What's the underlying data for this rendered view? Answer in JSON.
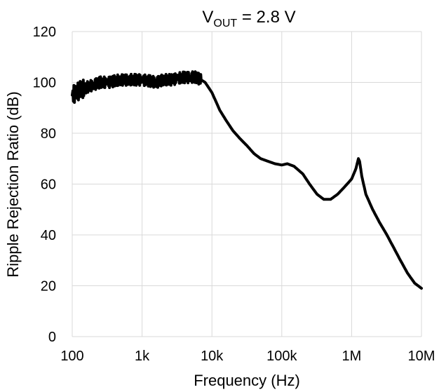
{
  "chart_data": {
    "type": "line",
    "title_main": "V",
    "title_sub": "OUT",
    "title_rest": " = 2.8 V",
    "xlabel": "Frequency (Hz)",
    "ylabel": "Ripple Rejection Ratio (dB)",
    "x_scale": "log",
    "xlim": [
      100,
      10000000
    ],
    "ylim": [
      0,
      120
    ],
    "x_ticks": [
      100,
      1000,
      10000,
      100000,
      1000000,
      10000000
    ],
    "x_tick_labels": [
      "100",
      "1k",
      "10k",
      "100k",
      "1M",
      "10M"
    ],
    "y_ticks": [
      0,
      20,
      40,
      60,
      80,
      100,
      120
    ],
    "y_tick_labels": [
      "0",
      "20",
      "40",
      "60",
      "80",
      "100",
      "120"
    ],
    "grid": true,
    "line_color": "#000000",
    "series": [
      {
        "x": [
          100,
          130,
          160,
          200,
          250,
          320,
          400,
          500,
          630,
          800,
          1000,
          1300,
          1600,
          2000,
          2500,
          3200,
          4000,
          5000,
          6000,
          7000,
          8000,
          10000,
          13000,
          16000,
          20000,
          25000,
          32000,
          40000,
          50000,
          63000,
          80000,
          100000,
          120000,
          150000,
          200000,
          250000,
          320000,
          400000,
          500000,
          630000,
          800000,
          1000000,
          1150000,
          1250000,
          1300000,
          1400000,
          1600000,
          2000000,
          2500000,
          3200000,
          4000000,
          5000000,
          6300000,
          8000000,
          10000000
        ],
        "y": [
          95,
          97,
          98,
          99,
          100,
          100,
          100.5,
          101,
          101,
          101,
          101,
          100.5,
          100,
          101,
          101,
          101.5,
          102,
          102,
          102,
          101,
          100,
          96,
          89,
          85,
          81,
          78,
          75,
          72,
          70,
          69,
          68,
          67.5,
          68,
          67,
          64,
          60,
          56,
          54,
          54,
          56,
          59,
          62,
          66,
          70,
          69,
          63,
          56,
          50,
          45,
          40,
          35,
          30,
          25,
          21,
          19
        ]
      }
    ]
  }
}
